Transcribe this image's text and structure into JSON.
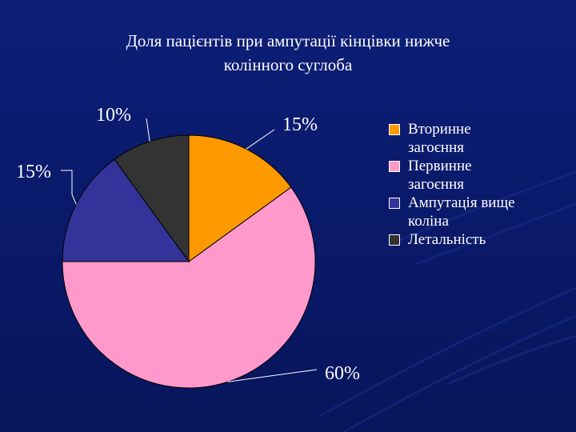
{
  "slide": {
    "title_line1": "Доля пацієнтів при ампутації кінцівки нижче",
    "title_line2": "колінного суглоба",
    "background_color": "#0a1a6e"
  },
  "chart_data": {
    "type": "pie",
    "title": "Доля пацієнтів при ампутації кінцівки нижче колінного суглоба",
    "categories": [
      "Вторинне загоєння",
      "Первинне загоєння",
      "Ампутація вище коліна",
      "Летальність"
    ],
    "values": [
      15,
      60,
      15,
      10
    ],
    "data_labels": [
      "15%",
      "60%",
      "15%",
      "10%"
    ],
    "colors": [
      "#ff9900",
      "#ff99cc",
      "#333399",
      "#333333"
    ],
    "legend_position": "right",
    "legend_labels": [
      [
        "Вторинне",
        "загоєння"
      ],
      [
        "Первинне",
        "загоєння"
      ],
      [
        "Ампутація вище",
        "коліна"
      ],
      [
        "Летальність"
      ]
    ]
  }
}
